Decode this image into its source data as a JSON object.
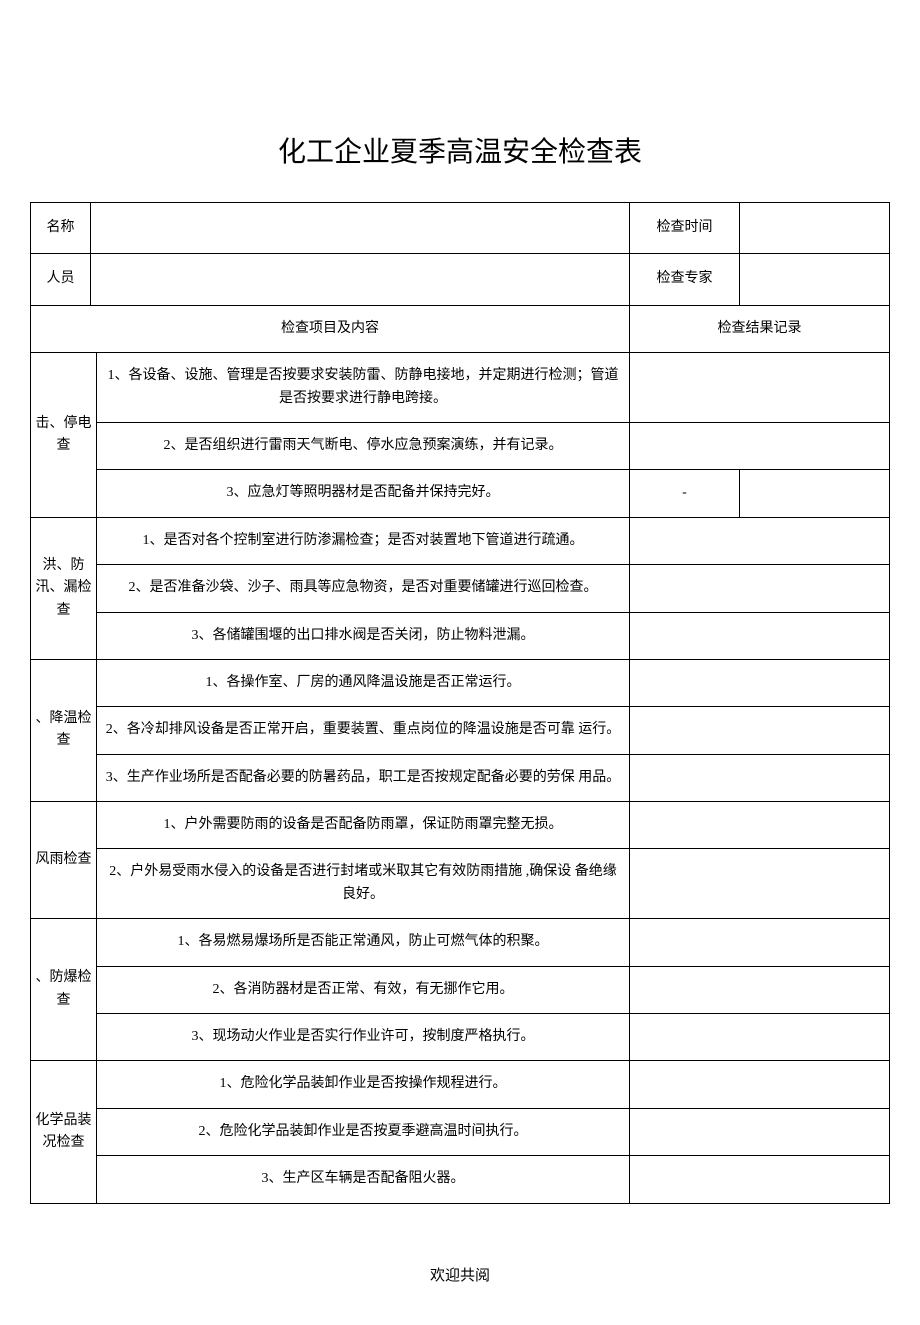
{
  "title": "化工企业夏季高温安全检查表",
  "header": {
    "name_label": "名称",
    "name_value": "",
    "check_time_label": "检查时间",
    "check_time_value": "",
    "personnel_label": "人员",
    "personnel_value": "",
    "check_expert_label": "检查专家",
    "check_expert_value": ""
  },
  "column_headers": {
    "category": "检查项目及内容",
    "result": "检查结果记录"
  },
  "sections": [
    {
      "category": "击、停电查",
      "items": [
        "1、各设备、设施、管理是否按要求安装防雷、防静电接地，并定期进行检测；管道是否按要求进行静电跨接。",
        "2、是否组织进行雷雨天气断电、停水应急预案演练，并有记录。",
        "3、应急灯等照明器材是否配备并保持完好。"
      ],
      "results": [
        "",
        "",
        "-"
      ]
    },
    {
      "category": "洪、防汛、漏检查",
      "items": [
        "1、是否对各个控制室进行防渗漏检查；是否对装置地下管道进行疏通。",
        "2、是否准备沙袋、沙子、雨具等应急物资，是否对重要储罐进行巡回检查。",
        "3、各储罐围堰的出口排水阀是否关闭，防止物料泄漏。"
      ]
    },
    {
      "category": "、降温检查",
      "items": [
        "1、各操作室、厂房的通风降温设施是否正常运行。",
        "2、各冷却排风设备是否正常开启，重要装置、重点岗位的降温设施是否可靠 运行。",
        "3、生产作业场所是否配备必要的防暑药品，职工是否按规定配备必要的劳保 用品。"
      ]
    },
    {
      "category": "风雨检查",
      "items": [
        "1、户外需要防雨的设备是否配备防雨罩，保证防雨罩完整无损。",
        "2、户外易受雨水侵入的设备是否进行封堵或米取其它有效防雨措施 ,确保设 备绝缘良好。"
      ]
    },
    {
      "category": "、防爆检查",
      "items": [
        "1、各易燃易爆场所是否能正常通风，防止可燃气体的积聚。",
        "2、各消防器材是否正常、有效，有无挪作它用。",
        "3、现场动火作业是否实行作业许可，按制度严格执行。"
      ]
    },
    {
      "category": "化学品装况检查",
      "items": [
        "1、危险化学品装卸作业是否按操作规程进行。",
        "2、危险化学品装卸作业是否按夏季避高温时间执行。",
        "3、生产区车辆是否配备阻火器。"
      ]
    }
  ],
  "footer": "欢迎共阅",
  "colors": {
    "border": "#000000",
    "text": "#000000",
    "background": "#ffffff"
  }
}
